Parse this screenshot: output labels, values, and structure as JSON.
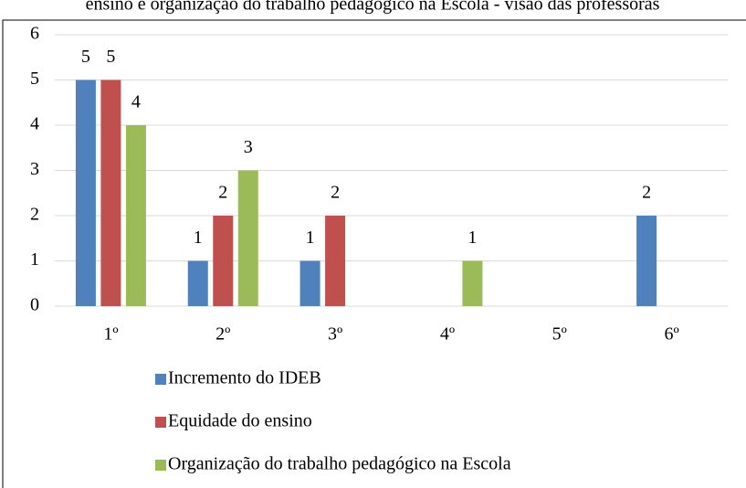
{
  "chart_data": {
    "type": "bar",
    "title": "ensino e organização do trabalho pedagógico na Escola - visão das professoras",
    "categories": [
      "1º",
      "2º",
      "3º",
      "4º",
      "5º",
      "6º"
    ],
    "series": [
      {
        "name": "Incremento do IDEB",
        "color": "#4f81bd",
        "values": [
          5,
          1,
          1,
          null,
          null,
          2
        ]
      },
      {
        "name": "Equidade do ensino",
        "color": "#c0504d",
        "values": [
          5,
          2,
          2,
          null,
          null,
          null
        ]
      },
      {
        "name": "Organização do trabalho pedagógico na Escola",
        "color": "#9bbb59",
        "values": [
          4,
          3,
          null,
          1,
          null,
          null
        ]
      }
    ],
    "ylim": [
      0,
      6
    ],
    "yticks": [
      0,
      1,
      2,
      3,
      4,
      5,
      6
    ],
    "grid": true,
    "legend": "bottom"
  }
}
